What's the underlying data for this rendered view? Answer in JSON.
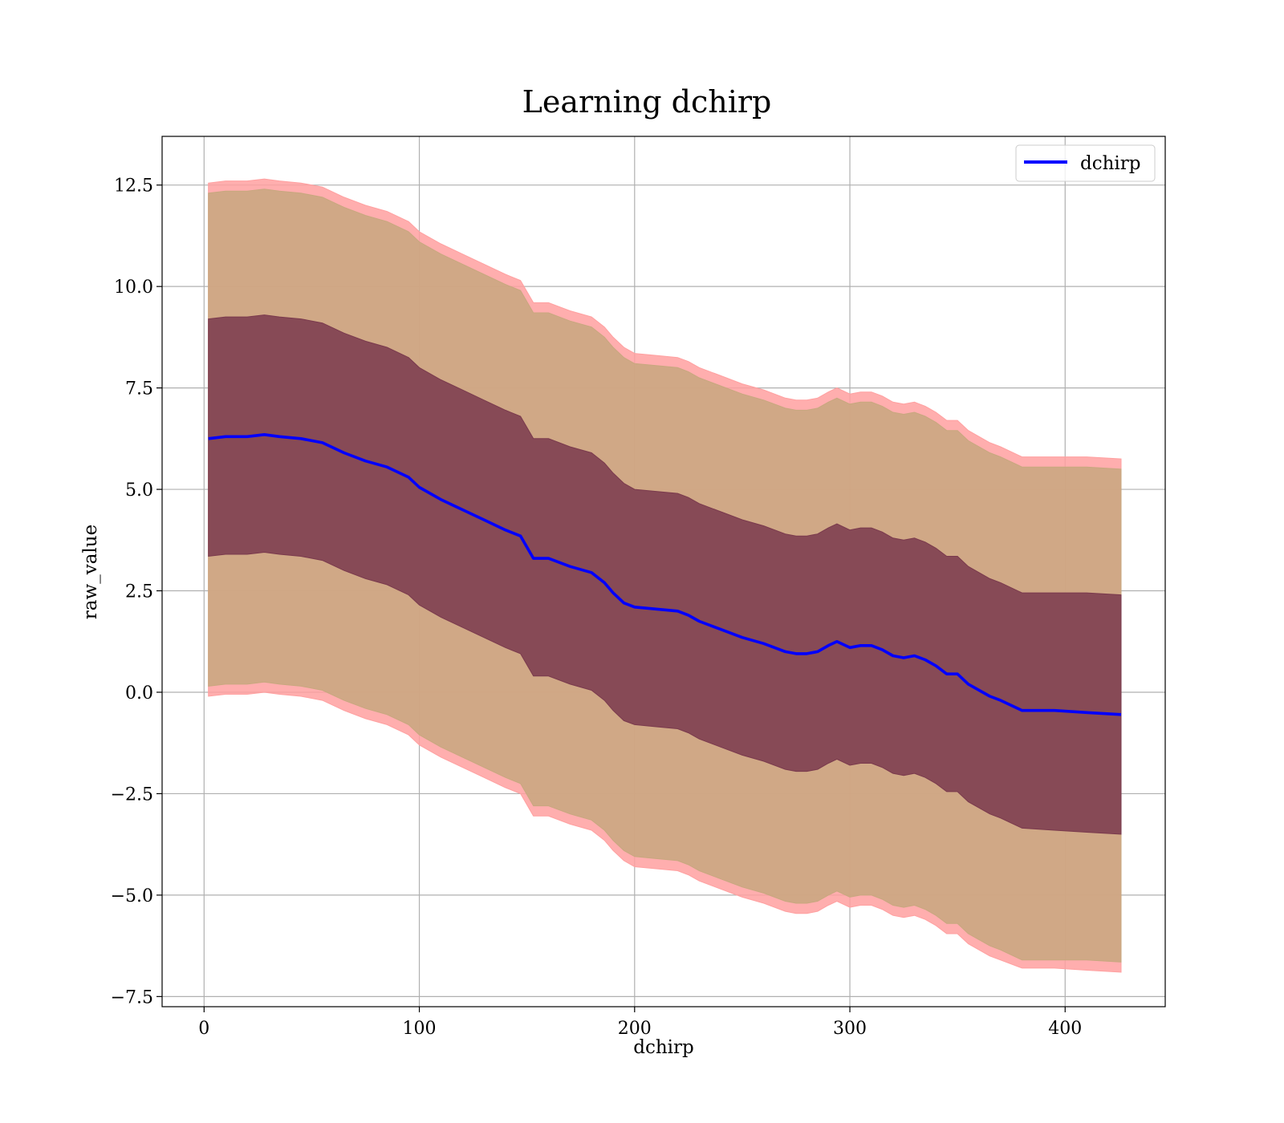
{
  "chart_data": {
    "type": "area",
    "title": "Learning dchirp",
    "xlabel": "dchirp",
    "ylabel": "raw_value",
    "xlim": [
      -19.5,
      446.5
    ],
    "ylim": [
      -7.75,
      13.7
    ],
    "xticks": [
      0,
      100,
      200,
      300,
      400
    ],
    "xtick_labels": [
      "0",
      "100",
      "200",
      "300",
      "400"
    ],
    "yticks": [
      -7.5,
      -5.0,
      -2.5,
      0.0,
      2.5,
      5.0,
      7.5,
      10.0,
      12.5
    ],
    "ytick_labels": [
      "−7.5",
      "−5.0",
      "−2.5",
      "0.0",
      "2.5",
      "5.0",
      "7.5",
      "10.0",
      "12.5"
    ],
    "grid": true,
    "legend": {
      "position": "top-right",
      "entries": [
        "dchirp"
      ]
    },
    "x": [
      2,
      10,
      20,
      28,
      35,
      45,
      55,
      65,
      75,
      85,
      95,
      100,
      110,
      120,
      130,
      140,
      147,
      153,
      160,
      170,
      180,
      186,
      190,
      195,
      200,
      210,
      220,
      225,
      230,
      240,
      250,
      260,
      270,
      275,
      280,
      285,
      290,
      294,
      300,
      305,
      310,
      315,
      320,
      325,
      330,
      335,
      340,
      345,
      350,
      355,
      365,
      370,
      380,
      395,
      410,
      426
    ],
    "series": [
      {
        "name": "dchirp",
        "role": "mean",
        "color": "#0000ff",
        "values": [
          6.25,
          6.3,
          6.3,
          6.35,
          6.3,
          6.25,
          6.15,
          5.9,
          5.7,
          5.55,
          5.3,
          5.05,
          4.75,
          4.5,
          4.25,
          4.0,
          3.85,
          3.3,
          3.3,
          3.1,
          2.95,
          2.7,
          2.45,
          2.2,
          2.1,
          2.05,
          2.0,
          1.9,
          1.75,
          1.55,
          1.35,
          1.2,
          1.0,
          0.95,
          0.95,
          1.0,
          1.15,
          1.25,
          1.1,
          1.15,
          1.15,
          1.05,
          0.9,
          0.85,
          0.9,
          0.8,
          0.65,
          0.45,
          0.45,
          0.2,
          -0.1,
          -0.2,
          -0.45,
          -0.45,
          -0.5,
          -0.55
        ]
      },
      {
        "role": "band-1",
        "color": "#7a3a4d",
        "lower": [
          3.35,
          3.4,
          3.4,
          3.45,
          3.4,
          3.35,
          3.25,
          3.0,
          2.8,
          2.65,
          2.4,
          2.15,
          1.85,
          1.6,
          1.35,
          1.1,
          0.95,
          0.4,
          0.4,
          0.2,
          0.05,
          -0.2,
          -0.45,
          -0.7,
          -0.8,
          -0.85,
          -0.9,
          -1.0,
          -1.15,
          -1.35,
          -1.55,
          -1.7,
          -1.9,
          -1.95,
          -1.95,
          -1.9,
          -1.75,
          -1.65,
          -1.8,
          -1.75,
          -1.75,
          -1.85,
          -2.0,
          -2.05,
          -2.0,
          -2.1,
          -2.25,
          -2.45,
          -2.45,
          -2.7,
          -3.0,
          -3.1,
          -3.35,
          -3.4,
          -3.45,
          -3.5
        ],
        "upper": [
          9.2,
          9.25,
          9.25,
          9.3,
          9.25,
          9.2,
          9.1,
          8.85,
          8.65,
          8.5,
          8.25,
          8.0,
          7.7,
          7.45,
          7.2,
          6.95,
          6.8,
          6.25,
          6.25,
          6.05,
          5.9,
          5.65,
          5.4,
          5.15,
          5.0,
          4.95,
          4.9,
          4.8,
          4.65,
          4.45,
          4.25,
          4.1,
          3.9,
          3.85,
          3.85,
          3.9,
          4.05,
          4.15,
          4.0,
          4.05,
          4.05,
          3.95,
          3.8,
          3.75,
          3.8,
          3.7,
          3.55,
          3.35,
          3.35,
          3.1,
          2.8,
          2.7,
          2.45,
          2.45,
          2.45,
          2.4
        ]
      },
      {
        "role": "band-2",
        "color": "#c8a77f",
        "lower": [
          0.15,
          0.2,
          0.2,
          0.25,
          0.2,
          0.15,
          0.05,
          -0.2,
          -0.4,
          -0.55,
          -0.8,
          -1.05,
          -1.35,
          -1.6,
          -1.85,
          -2.1,
          -2.25,
          -2.8,
          -2.8,
          -3.0,
          -3.15,
          -3.4,
          -3.65,
          -3.9,
          -4.05,
          -4.1,
          -4.15,
          -4.25,
          -4.4,
          -4.6,
          -4.8,
          -4.95,
          -5.15,
          -5.2,
          -5.2,
          -5.15,
          -5.0,
          -4.9,
          -5.05,
          -5.0,
          -5.0,
          -5.1,
          -5.25,
          -5.3,
          -5.25,
          -5.35,
          -5.5,
          -5.7,
          -5.7,
          -5.95,
          -6.25,
          -6.35,
          -6.6,
          -6.6,
          -6.6,
          -6.65
        ],
        "upper": [
          12.3,
          12.35,
          12.35,
          12.4,
          12.35,
          12.3,
          12.2,
          11.95,
          11.75,
          11.6,
          11.35,
          11.1,
          10.8,
          10.55,
          10.3,
          10.05,
          9.9,
          9.35,
          9.35,
          9.15,
          9.0,
          8.75,
          8.5,
          8.25,
          8.1,
          8.05,
          8.0,
          7.9,
          7.75,
          7.55,
          7.35,
          7.2,
          7.0,
          6.95,
          6.95,
          7.0,
          7.15,
          7.25,
          7.1,
          7.15,
          7.15,
          7.05,
          6.9,
          6.85,
          6.9,
          6.8,
          6.65,
          6.45,
          6.45,
          6.2,
          5.9,
          5.8,
          5.55,
          5.55,
          5.55,
          5.5
        ]
      },
      {
        "role": "band-3",
        "color": "#ffa0a0",
        "lower": [
          -0.1,
          -0.05,
          -0.05,
          0.0,
          -0.05,
          -0.1,
          -0.2,
          -0.45,
          -0.65,
          -0.8,
          -1.05,
          -1.3,
          -1.6,
          -1.85,
          -2.1,
          -2.35,
          -2.5,
          -3.05,
          -3.05,
          -3.25,
          -3.4,
          -3.65,
          -3.9,
          -4.15,
          -4.3,
          -4.35,
          -4.4,
          -4.5,
          -4.65,
          -4.85,
          -5.05,
          -5.2,
          -5.4,
          -5.45,
          -5.45,
          -5.4,
          -5.25,
          -5.15,
          -5.3,
          -5.25,
          -5.25,
          -5.35,
          -5.5,
          -5.55,
          -5.5,
          -5.6,
          -5.75,
          -5.95,
          -5.95,
          -6.2,
          -6.5,
          -6.6,
          -6.8,
          -6.8,
          -6.85,
          -6.9
        ],
        "upper": [
          12.55,
          12.6,
          12.6,
          12.65,
          12.6,
          12.55,
          12.45,
          12.2,
          12.0,
          11.85,
          11.6,
          11.35,
          11.05,
          10.8,
          10.55,
          10.3,
          10.15,
          9.6,
          9.6,
          9.4,
          9.25,
          9.0,
          8.75,
          8.5,
          8.35,
          8.3,
          8.25,
          8.15,
          8.0,
          7.8,
          7.6,
          7.45,
          7.25,
          7.2,
          7.2,
          7.25,
          7.4,
          7.5,
          7.35,
          7.4,
          7.4,
          7.3,
          7.15,
          7.1,
          7.15,
          7.05,
          6.9,
          6.7,
          6.7,
          6.45,
          6.15,
          6.05,
          5.8,
          5.8,
          5.8,
          5.75
        ]
      }
    ]
  }
}
